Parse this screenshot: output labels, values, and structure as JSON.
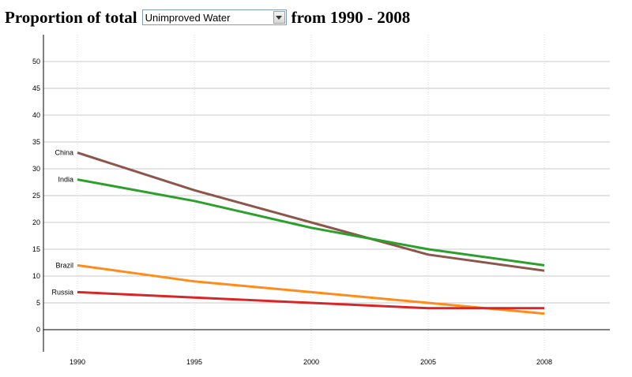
{
  "header": {
    "prefix": "Proportion of total",
    "selected": "Unimproved Water",
    "suffix": "from 1990 - 2008"
  },
  "chart_data": {
    "type": "line",
    "x": [
      "1990",
      "1995",
      "2000",
      "2005",
      "2008"
    ],
    "ylim": [
      0,
      50
    ],
    "yticks": [
      0,
      5,
      10,
      15,
      20,
      25,
      30,
      35,
      40,
      45,
      50
    ],
    "grid": true,
    "series": [
      {
        "name": "China",
        "color": "#8c564b",
        "values": [
          33,
          26,
          20,
          14,
          11
        ]
      },
      {
        "name": "India",
        "color": "#2ca02c",
        "values": [
          28,
          24,
          19,
          15,
          12
        ]
      },
      {
        "name": "Brazil",
        "color": "#ff8c1a",
        "values": [
          12,
          9,
          7,
          5,
          3
        ]
      },
      {
        "name": "Russia",
        "color": "#d62728",
        "values": [
          7,
          6,
          5,
          4,
          4
        ]
      }
    ]
  }
}
